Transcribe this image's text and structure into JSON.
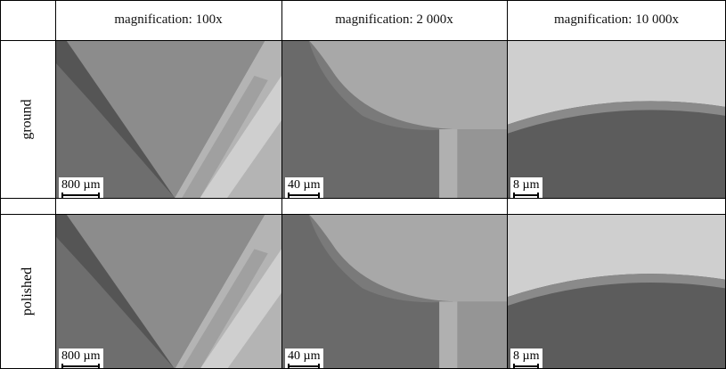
{
  "columns": [
    "magnification: 100x",
    "magnification: 2 000x",
    "magnification: 10 000x"
  ],
  "rows": [
    {
      "label": "ground",
      "scale_bars": [
        "800 µm",
        "40 µm",
        "8 µm"
      ]
    },
    {
      "label": "polished",
      "scale_bars": [
        "800 µm",
        "40 µm",
        "8 µm"
      ]
    }
  ]
}
